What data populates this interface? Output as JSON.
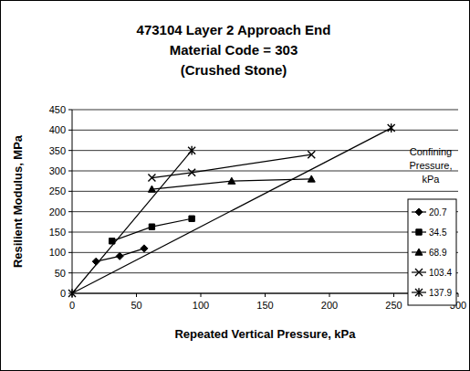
{
  "chart_data": {
    "type": "line",
    "title": "473104 Layer 2 Approach End\nMaterial Code = 303\n(Crushed Stone)",
    "x_label": "Repeated Vertical Pressure, kPa",
    "y_label": "Resilient Modulus, MPa",
    "legend_title": "Confining Pressure, kPa",
    "xlim": [
      0,
      300
    ],
    "xticks": [
      0,
      50,
      100,
      150,
      200,
      250,
      300
    ],
    "ylim": [
      0,
      450
    ],
    "yticks": [
      0,
      50,
      100,
      150,
      200,
      250,
      300,
      350,
      400,
      450
    ],
    "grid": true,
    "legend": "right",
    "series": [
      {
        "name": "20.7",
        "color": "#000000",
        "marker": "diamond",
        "line_style": "solid",
        "x": [
          18.6,
          37,
          56
        ],
        "values": [
          78,
          91,
          110
        ]
      },
      {
        "name": "34.5",
        "color": "#000000",
        "marker": "square",
        "line_style": "solid",
        "x": [
          31,
          62,
          93
        ],
        "values": [
          128,
          163,
          183
        ]
      },
      {
        "name": "68.9",
        "color": "#000000",
        "marker": "triangle",
        "line_style": "solid",
        "x": [
          62,
          124,
          186
        ],
        "values": [
          255,
          275,
          280
        ]
      },
      {
        "name": "103.4",
        "color": "#000000",
        "marker": "x",
        "line_style": "solid",
        "x": [
          62,
          93,
          186
        ],
        "values": [
          283,
          296,
          340
        ]
      },
      {
        "name": "137.9",
        "color": "#000000",
        "marker": "star",
        "line_style": "solid",
        "x": [
          93,
          0,
          248
        ],
        "values": [
          350,
          0,
          405
        ]
      }
    ]
  }
}
